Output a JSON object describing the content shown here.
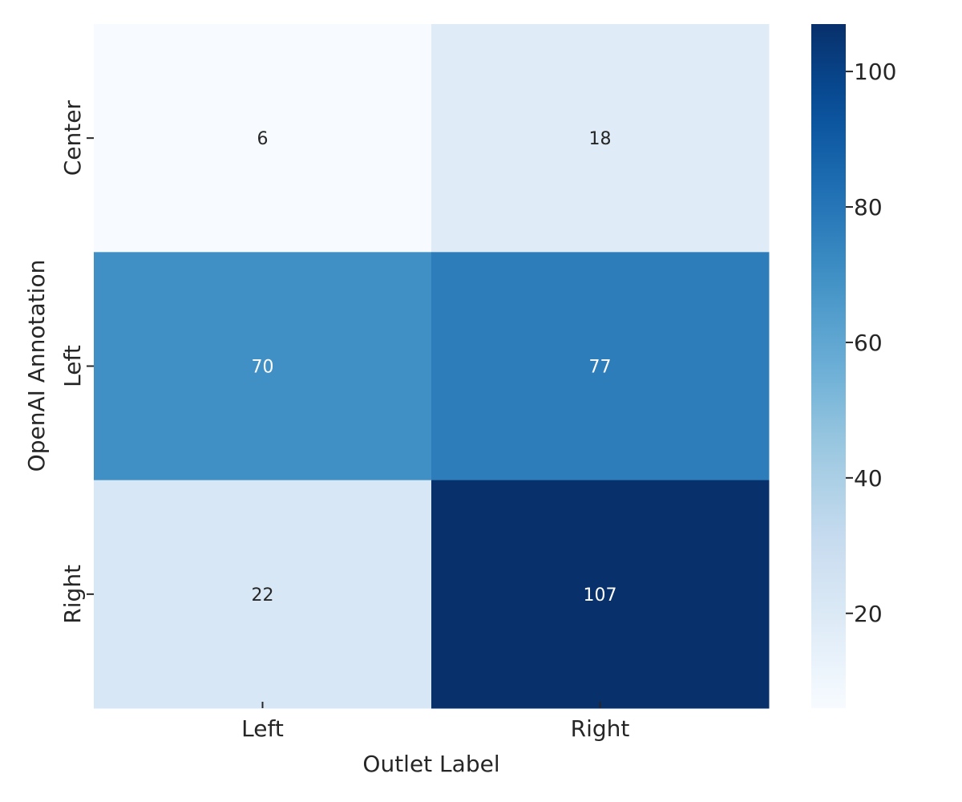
{
  "chart_data": {
    "type": "heatmap",
    "x_categories": [
      "Left",
      "Right"
    ],
    "y_categories": [
      "Center",
      "Left",
      "Right"
    ],
    "values": [
      [
        6,
        18
      ],
      [
        70,
        77
      ],
      [
        22,
        107
      ]
    ],
    "xlabel": "Outlet Label",
    "ylabel": "OpenAI Annotation",
    "colormap": "Blues",
    "colorbar": {
      "range": [
        6,
        107
      ],
      "ticks": [
        20,
        40,
        60,
        80,
        100
      ]
    },
    "annotated": true,
    "grid": false
  }
}
